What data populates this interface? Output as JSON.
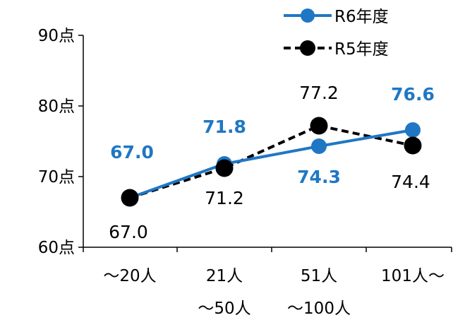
{
  "chart_data": {
    "type": "line",
    "title": "",
    "xlabel": "",
    "ylabel": "",
    "categories": [
      "～20人",
      "21人\n～50人",
      "51人\n～100人",
      "101人～"
    ],
    "ylim": [
      60,
      90
    ],
    "yticks": [
      60,
      70,
      80,
      90
    ],
    "ytick_labels": [
      "60点",
      "70点",
      "80点",
      "90点"
    ],
    "grid": false,
    "legend_position": "top-right",
    "series": [
      {
        "name": "R6年度",
        "values": [
          67.0,
          71.8,
          74.3,
          76.6
        ],
        "labels": [
          "67.0",
          "71.8",
          "74.3",
          "76.6"
        ],
        "color": "#1f77c4",
        "line_style": "solid",
        "label_bold": true
      },
      {
        "name": "R5年度",
        "values": [
          67.0,
          71.2,
          77.2,
          74.4
        ],
        "labels": [
          "67.0",
          "71.2",
          "77.2",
          "74.4"
        ],
        "color": "#000000",
        "line_style": "dashed",
        "label_bold": false
      }
    ]
  }
}
